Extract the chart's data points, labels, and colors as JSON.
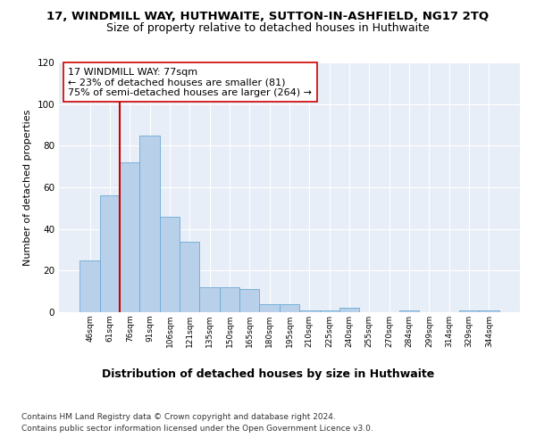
{
  "title": "17, WINDMILL WAY, HUTHWAITE, SUTTON-IN-ASHFIELD, NG17 2TQ",
  "subtitle": "Size of property relative to detached houses in Huthwaite",
  "xlabel": "Distribution of detached houses by size in Huthwaite",
  "ylabel": "Number of detached properties",
  "categories": [
    "46sqm",
    "61sqm",
    "76sqm",
    "91sqm",
    "106sqm",
    "121sqm",
    "135sqm",
    "150sqm",
    "165sqm",
    "180sqm",
    "195sqm",
    "210sqm",
    "225sqm",
    "240sqm",
    "255sqm",
    "270sqm",
    "284sqm",
    "299sqm",
    "314sqm",
    "329sqm",
    "344sqm"
  ],
  "values": [
    25,
    56,
    72,
    85,
    46,
    34,
    12,
    12,
    11,
    4,
    4,
    1,
    1,
    2,
    0,
    0,
    1,
    0,
    0,
    1,
    1
  ],
  "bar_color": "#b8d0ea",
  "bar_edge_color": "#6aaad4",
  "vline_x": 2,
  "vline_color": "#cc0000",
  "annotation_line1": "17 WINDMILL WAY: 77sqm",
  "annotation_line2": "← 23% of detached houses are smaller (81)",
  "annotation_line3": "75% of semi-detached houses are larger (264) →",
  "annotation_box_color": "#ffffff",
  "annotation_box_edge": "#cc0000",
  "ylim": [
    0,
    120
  ],
  "yticks": [
    0,
    20,
    40,
    60,
    80,
    100,
    120
  ],
  "footer1": "Contains HM Land Registry data © Crown copyright and database right 2024.",
  "footer2": "Contains public sector information licensed under the Open Government Licence v3.0.",
  "bg_color": "#e8eef7",
  "grid_color": "#ffffff",
  "title_fontsize": 9.5,
  "subtitle_fontsize": 9,
  "xlabel_fontsize": 9,
  "ylabel_fontsize": 8,
  "footer_fontsize": 6.5,
  "annotation_fontsize": 8
}
